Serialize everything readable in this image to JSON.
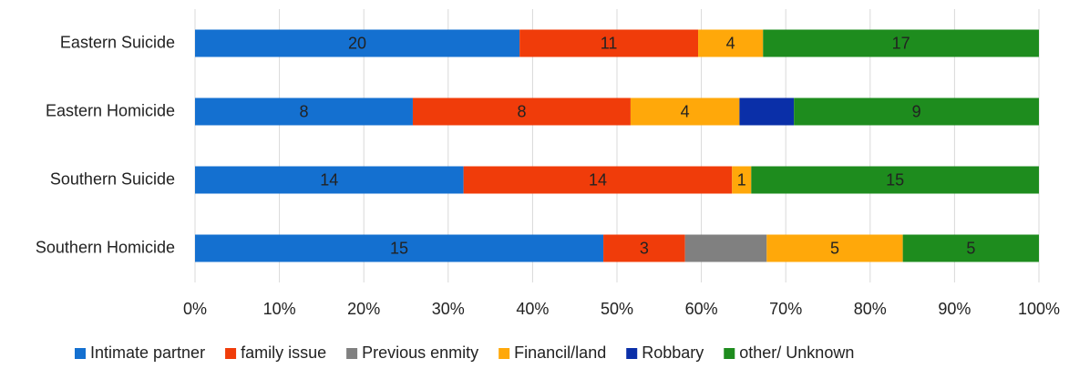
{
  "chart_data": {
    "type": "bar",
    "orientation": "horizontal",
    "stacking": "percent",
    "categories": [
      "Eastern Suicide",
      "Eastern Homicide",
      "Southern Suicide",
      "Southern Homicide"
    ],
    "series": [
      {
        "name": "Intimate partner",
        "color": "#1470d0",
        "values": [
          20,
          8,
          14,
          15
        ],
        "value_labels": [
          "20",
          "8",
          "14",
          "15"
        ]
      },
      {
        "name": "family issue",
        "color": "#f03c0a",
        "values": [
          11,
          8,
          14,
          3
        ],
        "value_labels": [
          "11",
          "8",
          "14",
          "3"
        ]
      },
      {
        "name": "Previous enmity",
        "color": "#808080",
        "values": [
          0,
          0,
          0,
          3
        ],
        "value_labels": [
          null,
          null,
          null,
          null
        ]
      },
      {
        "name": "Financil/land",
        "color": "#ffa80a",
        "values": [
          4,
          4,
          1,
          5
        ],
        "value_labels": [
          "4",
          "4",
          "1",
          "5"
        ]
      },
      {
        "name": "Robbary",
        "color": "#0a2fa8",
        "values": [
          0,
          2,
          0,
          0
        ],
        "value_labels": [
          null,
          null,
          null,
          null
        ]
      },
      {
        "name": "other/ Unknown",
        "color": "#1e8c1e",
        "values": [
          17,
          9,
          15,
          5
        ],
        "value_labels": [
          "17",
          "9",
          "15",
          "5"
        ]
      }
    ],
    "xlim": [
      0,
      100
    ],
    "xticks": [
      {
        "value": 0,
        "label": "0%"
      },
      {
        "value": 10,
        "label": "10%"
      },
      {
        "value": 20,
        "label": "20%"
      },
      {
        "value": 30,
        "label": "30%"
      },
      {
        "value": 40,
        "label": "40%"
      },
      {
        "value": 50,
        "label": "50%"
      },
      {
        "value": 60,
        "label": "60%"
      },
      {
        "value": 70,
        "label": "70%"
      },
      {
        "value": 80,
        "label": "80%"
      },
      {
        "value": 90,
        "label": "90%"
      },
      {
        "value": 100,
        "label": "100%"
      }
    ],
    "grid": true,
    "legend": "bottom"
  }
}
